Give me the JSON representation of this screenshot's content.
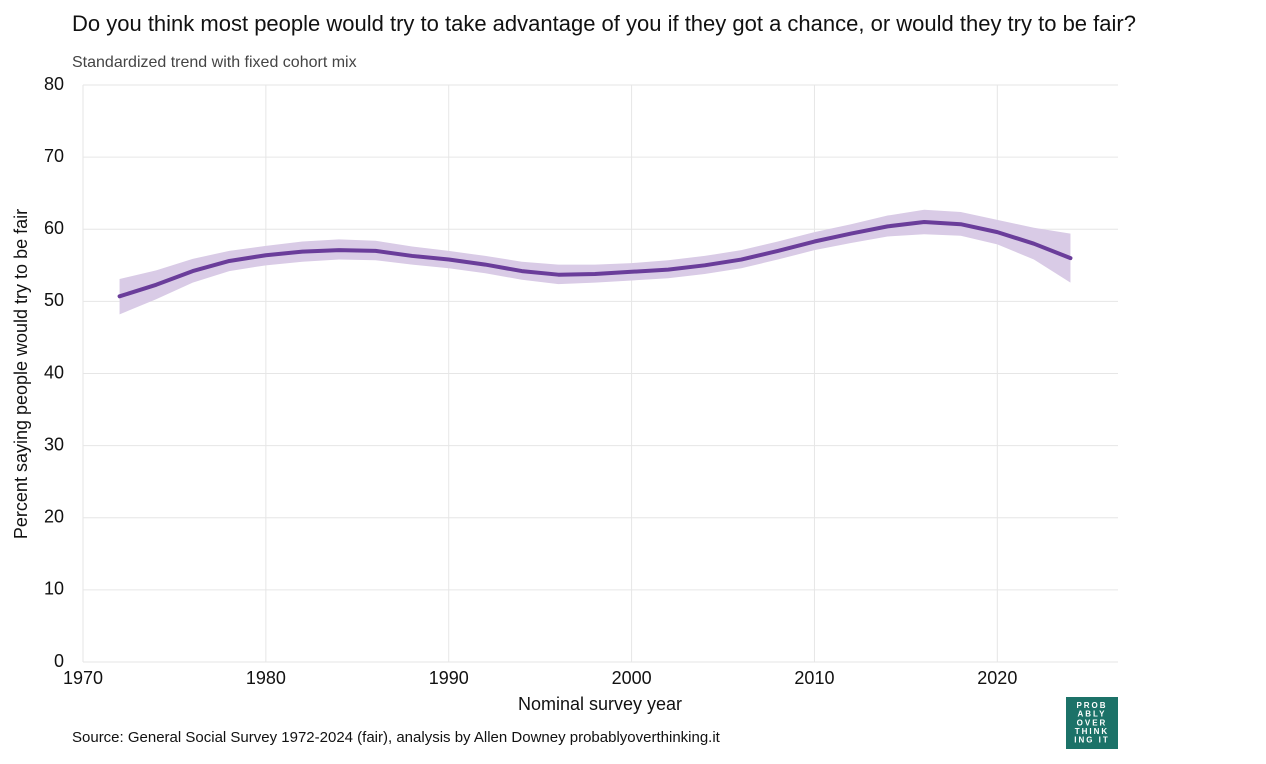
{
  "chart_data": {
    "type": "line",
    "title": "Do you think most people would try to take advantage of you if they got a chance, or would they try to be fair?",
    "subtitle": "Standardized trend with fixed cohort mix",
    "x_label": "Nominal survey year",
    "y_label": "Percent saying people would try to be fair",
    "source": "Source: General Social Survey 1972-2024 (fair), analysis by Allen Downey probablyoverthinking.it",
    "logo": [
      "PROB",
      "ABLY",
      "OVER",
      "THINK",
      "ING IT"
    ],
    "x": [
      1972,
      1974,
      1976,
      1978,
      1980,
      1982,
      1984,
      1986,
      1988,
      1990,
      1992,
      1994,
      1996,
      1998,
      2000,
      2002,
      2004,
      2006,
      2008,
      2010,
      2012,
      2014,
      2016,
      2018,
      2020,
      2022,
      2024
    ],
    "series": [
      {
        "color": "#6a3d9a",
        "band_color": "#d9cbe6",
        "values": [
          50.7,
          52.3,
          54.2,
          55.6,
          56.4,
          56.9,
          57.1,
          57.0,
          56.3,
          55.8,
          55.1,
          54.2,
          53.7,
          53.8,
          54.1,
          54.4,
          55.0,
          55.8,
          57.0,
          58.3,
          59.4,
          60.4,
          61.0,
          60.7,
          59.6,
          58.0,
          56.0
        ],
        "lower": [
          48.2,
          50.3,
          52.6,
          54.2,
          55.0,
          55.5,
          55.8,
          55.7,
          55.1,
          54.6,
          53.9,
          53.0,
          52.4,
          52.6,
          52.9,
          53.2,
          53.8,
          54.6,
          55.8,
          57.1,
          58.1,
          59.0,
          59.3,
          59.1,
          57.9,
          55.8,
          52.6
        ],
        "upper": [
          53.1,
          54.3,
          55.9,
          57.0,
          57.7,
          58.3,
          58.6,
          58.4,
          57.6,
          57.0,
          56.3,
          55.5,
          55.1,
          55.1,
          55.3,
          55.7,
          56.3,
          57.1,
          58.3,
          59.6,
          60.7,
          61.9,
          62.7,
          62.4,
          61.3,
          60.2,
          59.4
        ]
      }
    ],
    "xlim": [
      1970,
      2026.6
    ],
    "xticks": [
      1970,
      1980,
      1990,
      2000,
      2010,
      2020
    ],
    "ylim": [
      0,
      80
    ],
    "yticks": [
      0,
      10,
      20,
      30,
      40,
      50,
      60,
      70,
      80
    ],
    "grid": true
  }
}
